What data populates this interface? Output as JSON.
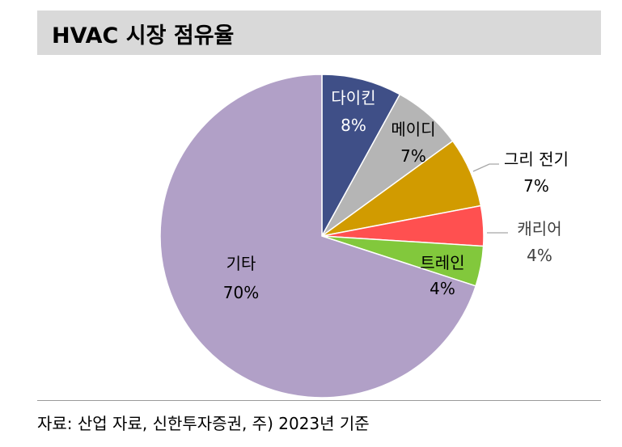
{
  "title": "HVAC 시장 점유율",
  "source": "자료: 산업 자료, 신한투자증권, 주) 2023년 기준",
  "chart_data": {
    "type": "pie",
    "categories": [
      "다이킨",
      "메이디",
      "그리 전기",
      "캐리어",
      "트레인",
      "기타"
    ],
    "values": [
      8,
      7,
      7,
      4,
      4,
      70
    ],
    "value_labels": [
      "8%",
      "7%",
      "7%",
      "4%",
      "4%",
      "70%"
    ],
    "colors": [
      "#3f4f87",
      "#b5b5b5",
      "#d19b00",
      "#ff5050",
      "#82c83c",
      "#b1a0c7"
    ],
    "start_angle_deg": 0,
    "direction": "clockwise",
    "legend": "none"
  }
}
